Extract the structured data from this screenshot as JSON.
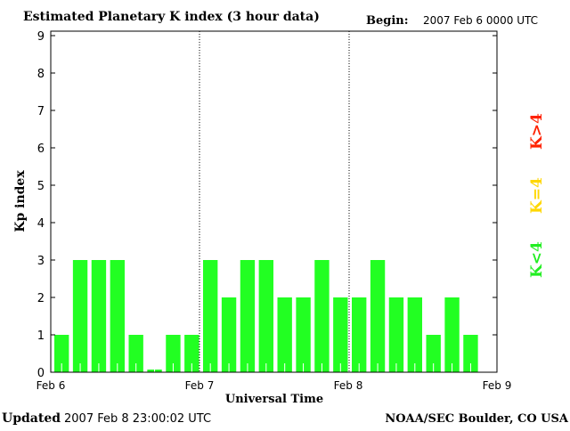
{
  "chart_data": {
    "type": "bar",
    "title": "Estimated Planetary K index (3 hour data)",
    "begin_label": "Begin:",
    "begin_value": "2007 Feb 6 0000 UTC",
    "xlabel": "Universal Time",
    "ylabel": "Kp index",
    "ylim": [
      0,
      9
    ],
    "yticks": [
      "0",
      "1",
      "2",
      "3",
      "4",
      "5",
      "6",
      "7",
      "8",
      "9"
    ],
    "xticks": [
      "Feb 6",
      "Feb 7",
      "Feb 8",
      "Feb 9"
    ],
    "slots": 24,
    "values": [
      1,
      3,
      3,
      3,
      1,
      0,
      1,
      1,
      3,
      2,
      3,
      3,
      2,
      2,
      3,
      2,
      2,
      3,
      2,
      2,
      1,
      2,
      1
    ],
    "legend": [
      {
        "label": "K<4",
        "color": "#22ee22"
      },
      {
        "label": "K=4",
        "color": "#ffd700"
      },
      {
        "label": "K>4",
        "color": "#ff2200"
      }
    ],
    "bar_color": "#22ff22",
    "grid": "dotted day separators"
  },
  "footer": {
    "updated_label": "Updated",
    "updated_value": "2007 Feb  8 23:00:02 UTC",
    "source": "NOAA/SEC Boulder, CO USA"
  }
}
